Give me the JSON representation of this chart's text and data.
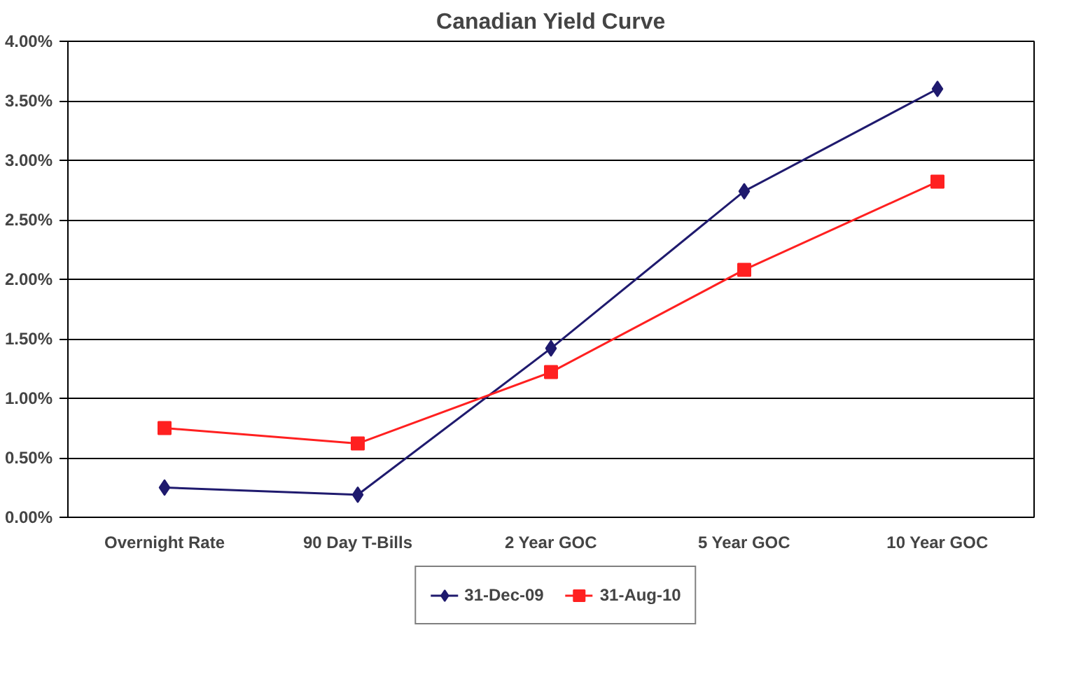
{
  "chart_data": {
    "type": "line",
    "title": "Canadian Yield Curve",
    "categories": [
      "Overnight Rate",
      "90 Day T-Bills",
      "2 Year GOC",
      "5 Year GOC",
      "10 Year GOC"
    ],
    "series": [
      {
        "name": "31-Dec-09",
        "color": "#1f1a6e",
        "marker": "diamond",
        "values": [
          0.25,
          0.19,
          1.42,
          2.74,
          3.6
        ]
      },
      {
        "name": "31-Aug-10",
        "color": "#ff2020",
        "marker": "square",
        "values": [
          0.75,
          0.62,
          1.22,
          2.08,
          2.82
        ]
      }
    ],
    "ylim": [
      0,
      4
    ],
    "yticks": [
      {
        "value": 0,
        "label": "0.00%"
      },
      {
        "value": 0.5,
        "label": "0.50%"
      },
      {
        "value": 1,
        "label": "1.00%"
      },
      {
        "value": 1.5,
        "label": "1.50%"
      },
      {
        "value": 2,
        "label": "2.00%"
      },
      {
        "value": 2.5,
        "label": "2.50%"
      },
      {
        "value": 3,
        "label": "3.00%"
      },
      {
        "value": 3.5,
        "label": "3.50%"
      },
      {
        "value": 4,
        "label": "4.00%"
      }
    ],
    "grid": "y",
    "legend": "bottom",
    "line_style": "solid"
  }
}
